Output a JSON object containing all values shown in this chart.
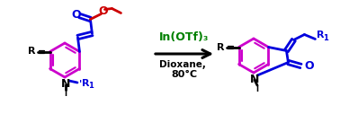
{
  "bg_color": "#ffffff",
  "arrow_color": "#000000",
  "reagent_color": "#008000",
  "blue_color": "#0000dd",
  "red_color": "#cc0000",
  "purple_color": "#cc00cc",
  "black_color": "#000000",
  "reagent_text": "In(OTf)₃",
  "condition1": "Dioxane,",
  "condition2": "80°C",
  "figsize": [
    3.78,
    1.27
  ],
  "dpi": 100
}
